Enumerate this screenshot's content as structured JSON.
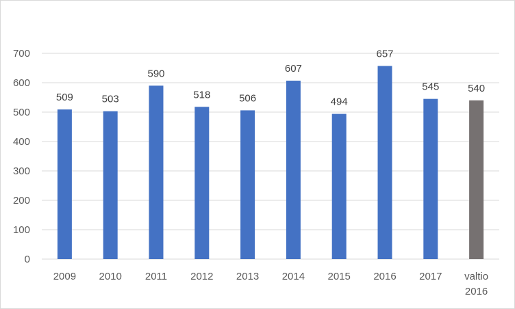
{
  "chart_data": {
    "type": "bar",
    "title": "",
    "xlabel": "",
    "ylabel": "",
    "categories": [
      [
        "2009"
      ],
      [
        "2010"
      ],
      [
        "2011"
      ],
      [
        "2012"
      ],
      [
        "2013"
      ],
      [
        "2014"
      ],
      [
        "2015"
      ],
      [
        "2016"
      ],
      [
        "2017"
      ],
      [
        "valtio",
        "2016"
      ]
    ],
    "values": [
      509,
      503,
      590,
      518,
      506,
      607,
      494,
      657,
      545,
      540
    ],
    "ylim": [
      0,
      700
    ],
    "yticks": [
      0,
      100,
      200,
      300,
      400,
      500,
      600,
      700
    ],
    "grid": true,
    "legend": "none",
    "colors": {
      "default_bar": "#4472C4",
      "highlight_bar": "#767171",
      "gridline": "#d9d9d9"
    },
    "highlight_index": 9
  }
}
